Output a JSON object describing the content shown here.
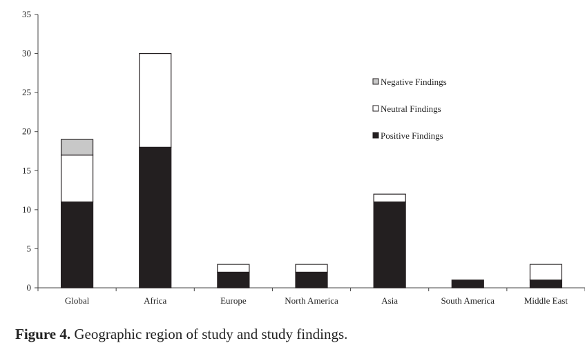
{
  "chart_data": {
    "type": "bar",
    "stacked": true,
    "categories": [
      "Global",
      "Africa",
      "Europe",
      "North America",
      "Asia",
      "South America",
      "Middle East"
    ],
    "series": [
      {
        "name": "Positive Findings",
        "color": "#231f20",
        "values": [
          11,
          18,
          2,
          2,
          11,
          1,
          1
        ]
      },
      {
        "name": "Neutral Findings",
        "color": "#ffffff",
        "values": [
          6,
          12,
          1,
          1,
          1,
          0,
          2
        ]
      },
      {
        "name": "Negative Findings",
        "color": "#c8c8c8",
        "values": [
          2,
          0,
          0,
          0,
          0,
          0,
          0
        ]
      }
    ],
    "legend_order": [
      "Negative Findings",
      "Neutral Findings",
      "Positive Findings"
    ],
    "legend_position": "right",
    "ylim": [
      0,
      35
    ],
    "yticks": [
      0,
      5,
      10,
      15,
      20,
      25,
      30,
      35
    ],
    "grid": false,
    "xlabel": "",
    "ylabel": ""
  },
  "caption": {
    "label": "Figure 4.",
    "text": " Geographic region of study and study findings."
  }
}
